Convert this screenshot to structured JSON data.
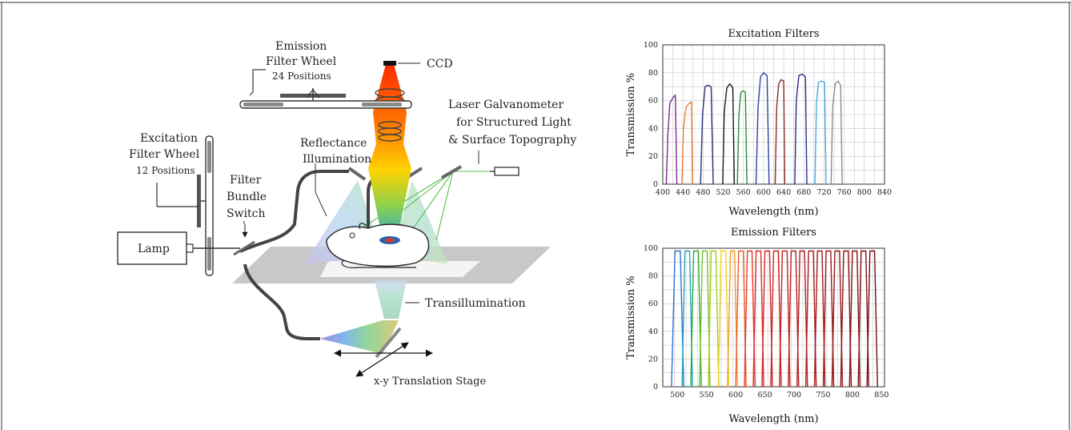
{
  "diagram": {
    "labels": {
      "emission_wheel_line1": "Emission",
      "emission_wheel_line2": "Filter Wheel",
      "emission_wheel_line3": "24 Positions",
      "ccd": "CCD",
      "laser_line1": "Laser Galvanometer",
      "laser_line2": "for Structured Light",
      "laser_line3": "& Surface Topography",
      "excitation_wheel_line1": "Excitation",
      "excitation_wheel_line2": "Filter Wheel",
      "excitation_wheel_line3": "12 Positions",
      "reflectance_line1": "Reflectance",
      "reflectance_line2": "Illumination",
      "switch_line1": "Filter",
      "switch_line2": "Bundle",
      "switch_line3": "Switch",
      "lamp": "Lamp",
      "transillumination": "Transillumination",
      "stage": "x-y Translation Stage"
    }
  },
  "chart_data": [
    {
      "type": "line",
      "title": "Excitation Filters",
      "xlabel": "Wavelength (nm)",
      "ylabel": "Transmission %",
      "xlim": [
        400,
        840
      ],
      "ylim": [
        0,
        100
      ],
      "xticks": [
        400,
        440,
        480,
        520,
        560,
        600,
        640,
        680,
        720,
        760,
        800,
        840
      ],
      "yticks": [
        0,
        20,
        40,
        60,
        80,
        100
      ],
      "grid": true,
      "series": [
        {
          "color": "#7b2a8e",
          "values": [
            [
              407,
              0
            ],
            [
              410,
              35
            ],
            [
              414,
              58
            ],
            [
              420,
              62
            ],
            [
              425,
              64
            ],
            [
              428,
              0
            ]
          ]
        },
        {
          "color": "#f07a2a",
          "values": [
            [
              438,
              0
            ],
            [
              441,
              40
            ],
            [
              446,
              55
            ],
            [
              452,
              58
            ],
            [
              457,
              59
            ],
            [
              459,
              0
            ]
          ]
        },
        {
          "color": "#2b2b80",
          "values": [
            [
              475,
              0
            ],
            [
              479,
              50
            ],
            [
              484,
              70
            ],
            [
              490,
              71
            ],
            [
              496,
              70
            ],
            [
              500,
              0
            ]
          ]
        },
        {
          "color": "#1a1a1a",
          "values": [
            [
              519,
              0
            ],
            [
              522,
              52
            ],
            [
              527,
              69
            ],
            [
              533,
              72
            ],
            [
              539,
              69
            ],
            [
              542,
              0
            ]
          ]
        },
        {
          "color": "#2a8a3a",
          "values": [
            [
              548,
              0
            ],
            [
              551,
              50
            ],
            [
              555,
              66
            ],
            [
              560,
              67
            ],
            [
              564,
              66
            ],
            [
              567,
              0
            ]
          ]
        },
        {
          "color": "#2e3ea8",
          "values": [
            [
              585,
              0
            ],
            [
              589,
              55
            ],
            [
              594,
              77
            ],
            [
              600,
              80
            ],
            [
              607,
              78
            ],
            [
              611,
              0
            ]
          ]
        },
        {
          "color": "#8b2a2a",
          "values": [
            [
              623,
              0
            ],
            [
              626,
              55
            ],
            [
              630,
              72
            ],
            [
              635,
              75
            ],
            [
              640,
              74
            ],
            [
              642,
              0
            ]
          ]
        },
        {
          "color": "#2a2a8e",
          "values": [
            [
              662,
              0
            ],
            [
              665,
              60
            ],
            [
              670,
              78
            ],
            [
              677,
              79
            ],
            [
              683,
              77
            ],
            [
              686,
              0
            ]
          ]
        },
        {
          "color": "#4aa8e0",
          "values": [
            [
              702,
              0
            ],
            [
              705,
              58
            ],
            [
              709,
              73
            ],
            [
              715,
              74
            ],
            [
              721,
              73
            ],
            [
              724,
              0
            ]
          ]
        },
        {
          "color": "#8c8c8c",
          "values": [
            [
              734,
              0
            ],
            [
              737,
              55
            ],
            [
              742,
              72
            ],
            [
              748,
              74
            ],
            [
              753,
              71
            ],
            [
              756,
              0
            ]
          ]
        }
      ]
    },
    {
      "type": "line",
      "title": "Emission Filters",
      "xlabel": "Wavelength (nm)",
      "ylabel": "Transmission %",
      "xlim": [
        475,
        855
      ],
      "ylim": [
        0,
        100
      ],
      "xticks": [
        500,
        550,
        600,
        650,
        700,
        750,
        800,
        850
      ],
      "yticks": [
        0,
        20,
        40,
        60,
        80,
        100
      ],
      "grid": true,
      "series": [
        {
          "color": "#2e6fd8",
          "values": [
            [
              490,
              0
            ],
            [
              496,
              98
            ],
            [
              505,
              98
            ],
            [
              511,
              0
            ]
          ]
        },
        {
          "color": "#1fa8b8",
          "values": [
            [
              508,
              0
            ],
            [
              513,
              98
            ],
            [
              521,
              98
            ],
            [
              526,
              0
            ]
          ]
        },
        {
          "color": "#2ea83a",
          "values": [
            [
              523,
              0
            ],
            [
              528,
              98
            ],
            [
              536,
              98
            ],
            [
              541,
              0
            ]
          ]
        },
        {
          "color": "#7cc22a",
          "values": [
            [
              538,
              0
            ],
            [
              543,
              98
            ],
            [
              551,
              98
            ],
            [
              556,
              0
            ]
          ]
        },
        {
          "color": "#a8cc1a",
          "values": [
            [
              553,
              0
            ],
            [
              558,
              98
            ],
            [
              566,
              98
            ],
            [
              571,
              0
            ]
          ]
        },
        {
          "color": "#f2d21a",
          "values": [
            [
              570,
              0
            ],
            [
              575,
              98
            ],
            [
              583,
              98
            ],
            [
              588,
              0
            ]
          ]
        },
        {
          "color": "#f0982a",
          "values": [
            [
              586,
              0
            ],
            [
              591,
              98
            ],
            [
              598,
              98
            ],
            [
              603,
              0
            ]
          ]
        },
        {
          "color": "#ec5a2a",
          "values": [
            [
              600,
              0
            ],
            [
              605,
              98
            ],
            [
              613,
              98
            ],
            [
              618,
              0
            ]
          ]
        },
        {
          "color": "#e43a2a",
          "values": [
            [
              615,
              0
            ],
            [
              620,
              98
            ],
            [
              628,
              98
            ],
            [
              633,
              0
            ]
          ]
        },
        {
          "color": "#dc2a2a",
          "values": [
            [
              630,
              0
            ],
            [
              635,
              98
            ],
            [
              643,
              98
            ],
            [
              648,
              0
            ]
          ]
        },
        {
          "color": "#d42626",
          "values": [
            [
              645,
              0
            ],
            [
              650,
              98
            ],
            [
              658,
              98
            ],
            [
              663,
              0
            ]
          ]
        },
        {
          "color": "#cc2424",
          "values": [
            [
              660,
              0
            ],
            [
              665,
              98
            ],
            [
              673,
              98
            ],
            [
              678,
              0
            ]
          ]
        },
        {
          "color": "#c42222",
          "values": [
            [
              675,
              0
            ],
            [
              680,
              98
            ],
            [
              688,
              98
            ],
            [
              693,
              0
            ]
          ]
        },
        {
          "color": "#bc2020",
          "values": [
            [
              690,
              0
            ],
            [
              695,
              98
            ],
            [
              703,
              98
            ],
            [
              708,
              0
            ]
          ]
        },
        {
          "color": "#b41e1e",
          "values": [
            [
              705,
              0
            ],
            [
              710,
              98
            ],
            [
              718,
              98
            ],
            [
              723,
              0
            ]
          ]
        },
        {
          "color": "#ac1c1c",
          "values": [
            [
              720,
              0
            ],
            [
              725,
              98
            ],
            [
              733,
              98
            ],
            [
              738,
              0
            ]
          ]
        },
        {
          "color": "#a41a1a",
          "values": [
            [
              735,
              0
            ],
            [
              740,
              98
            ],
            [
              748,
              98
            ],
            [
              753,
              0
            ]
          ]
        },
        {
          "color": "#9c1818",
          "values": [
            [
              750,
              0
            ],
            [
              755,
              98
            ],
            [
              763,
              98
            ],
            [
              768,
              0
            ]
          ]
        },
        {
          "color": "#941616",
          "values": [
            [
              765,
              0
            ],
            [
              770,
              98
            ],
            [
              778,
              98
            ],
            [
              783,
              0
            ]
          ]
        },
        {
          "color": "#8c1414",
          "values": [
            [
              780,
              0
            ],
            [
              785,
              98
            ],
            [
              793,
              98
            ],
            [
              798,
              0
            ]
          ]
        },
        {
          "color": "#841212",
          "values": [
            [
              795,
              0
            ],
            [
              800,
              98
            ],
            [
              808,
              98
            ],
            [
              813,
              0
            ]
          ]
        },
        {
          "color": "#7c1010",
          "values": [
            [
              810,
              0
            ],
            [
              815,
              98
            ],
            [
              823,
              98
            ],
            [
              828,
              0
            ]
          ]
        },
        {
          "color": "#740e0e",
          "values": [
            [
              825,
              0
            ],
            [
              830,
              98
            ],
            [
              838,
              98
            ],
            [
              843,
              0
            ]
          ]
        }
      ]
    }
  ]
}
